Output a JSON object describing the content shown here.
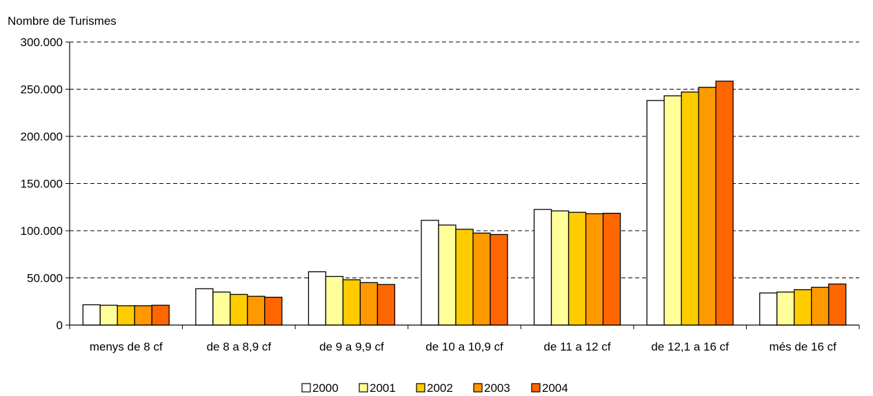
{
  "chart_data": {
    "type": "bar",
    "ylabel": "Nombre de Turismes",
    "ylim": [
      0,
      300000
    ],
    "yticks": [
      0,
      50000,
      100000,
      150000,
      200000,
      250000,
      300000
    ],
    "ytick_labels": [
      "0",
      "50.000",
      "100.000",
      "150.000",
      "200.000",
      "250.000",
      "300.000"
    ],
    "categories": [
      "menys de 8 cf",
      "de 8 a 8,9 cf",
      "de 9 a 9,9 cf",
      "de 10 a 10,9 cf",
      "de 11 a 12 cf",
      "de 12,1 a 16 cf",
      "més de 16 cf"
    ],
    "series": [
      {
        "name": "2000",
        "color": "#ffffff",
        "values": [
          21500,
          38500,
          56500,
          111000,
          122500,
          238000,
          34000
        ]
      },
      {
        "name": "2001",
        "color": "#ffff99",
        "values": [
          21000,
          35000,
          51500,
          106000,
          121000,
          243000,
          35000
        ]
      },
      {
        "name": "2002",
        "color": "#ffcc00",
        "values": [
          20500,
          32500,
          48000,
          101500,
          119500,
          247000,
          37500
        ]
      },
      {
        "name": "2003",
        "color": "#ff9900",
        "values": [
          20500,
          30500,
          45000,
          97500,
          118000,
          252000,
          40000
        ]
      },
      {
        "name": "2004",
        "color": "#ff6600",
        "values": [
          21000,
          29500,
          43000,
          96000,
          118500,
          258500,
          43500
        ]
      }
    ],
    "grid": "dashed horizontal",
    "legend": "bottom"
  }
}
